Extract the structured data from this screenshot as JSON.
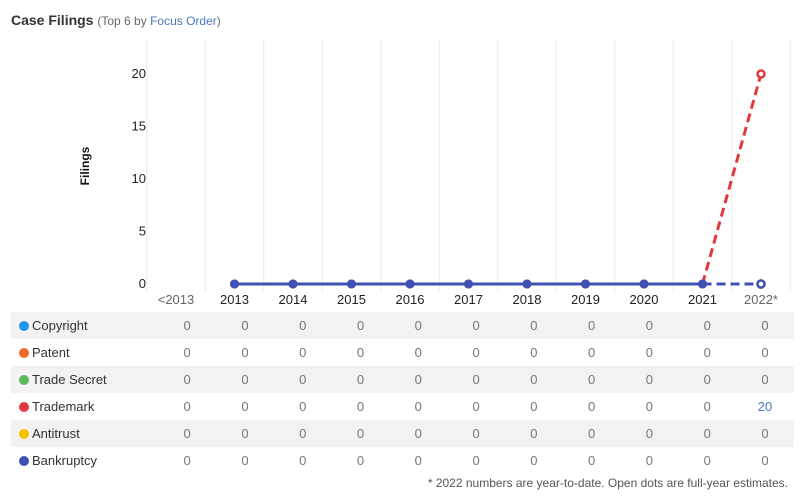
{
  "header": {
    "title": "Case Filings",
    "subtitle_open": "(Top 6 by ",
    "subtitle_link": "Focus Order",
    "subtitle_close": ")"
  },
  "chart_data": {
    "type": "line",
    "ylabel": "Filings",
    "xlabel": "",
    "ylim": [
      0,
      22
    ],
    "yticks": [
      0,
      5,
      10,
      15,
      20
    ],
    "categories": [
      "<2013",
      "2013",
      "2014",
      "2015",
      "2016",
      "2017",
      "2018",
      "2019",
      "2020",
      "2021",
      "2022*"
    ],
    "grid": "vertical",
    "series": [
      {
        "name": "Copyright",
        "color": "#2196f3",
        "values": [
          0,
          0,
          0,
          0,
          0,
          0,
          0,
          0,
          0,
          0,
          0
        ]
      },
      {
        "name": "Patent",
        "color": "#f26a2b",
        "values": [
          0,
          0,
          0,
          0,
          0,
          0,
          0,
          0,
          0,
          0,
          0
        ]
      },
      {
        "name": "Trade Secret",
        "color": "#5cb85c",
        "values": [
          0,
          0,
          0,
          0,
          0,
          0,
          0,
          0,
          0,
          0,
          0
        ]
      },
      {
        "name": "Trademark",
        "color": "#e03a3e",
        "values": [
          0,
          0,
          0,
          0,
          0,
          0,
          0,
          0,
          0,
          0,
          20
        ]
      },
      {
        "name": "Antitrust",
        "color": "#f5c000",
        "values": [
          0,
          0,
          0,
          0,
          0,
          0,
          0,
          0,
          0,
          0,
          0
        ]
      },
      {
        "name": "Bankruptcy",
        "color": "#3f51b5",
        "values": [
          0,
          0,
          0,
          0,
          0,
          0,
          0,
          0,
          0,
          0,
          0
        ]
      }
    ],
    "last_point": "open dot, dashed segment (full-year estimate)"
  },
  "footnote": "* 2022 numbers are year-to-date. Open dots are full-year estimates."
}
